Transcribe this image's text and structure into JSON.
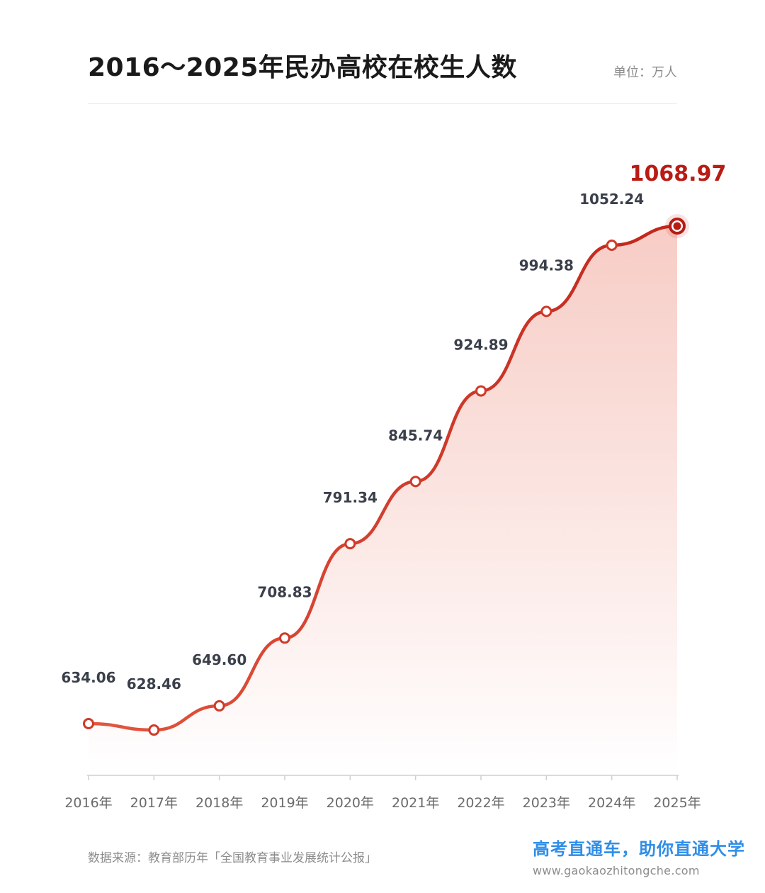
{
  "header": {
    "title": "2016～2025年民办高校在校生人数",
    "unit": "单位：万人"
  },
  "footer": {
    "source": "数据来源：教育部历年「全国教育事业发展统计公报」",
    "slogan": "高考直通车，助你直通大学",
    "url": "www.gaokaozhitongche.com"
  },
  "colors": {
    "line": "#cf3a28",
    "highlight": "#b81c14",
    "label": "#3a3f4a",
    "axis": "#cfcfcf",
    "tick_label": "#6b6b6b"
  },
  "chart_data": {
    "type": "area",
    "categories": [
      "2016年",
      "2017年",
      "2018年",
      "2019年",
      "2020年",
      "2021年",
      "2022年",
      "2023年",
      "2024年",
      "2025年"
    ],
    "values": [
      634.06,
      628.46,
      649.6,
      708.83,
      791.34,
      845.74,
      924.89,
      994.38,
      1052.24,
      1068.97
    ],
    "value_labels": [
      "634.06",
      "628.46",
      "649.60",
      "708.83",
      "791.34",
      "845.74",
      "924.89",
      "994.38",
      "1052.24",
      "1068.97"
    ],
    "title": "2016～2025年民办高校在校生人数",
    "unit": "单位：万人",
    "highlight_last": true,
    "grid": false,
    "legend": "none"
  }
}
